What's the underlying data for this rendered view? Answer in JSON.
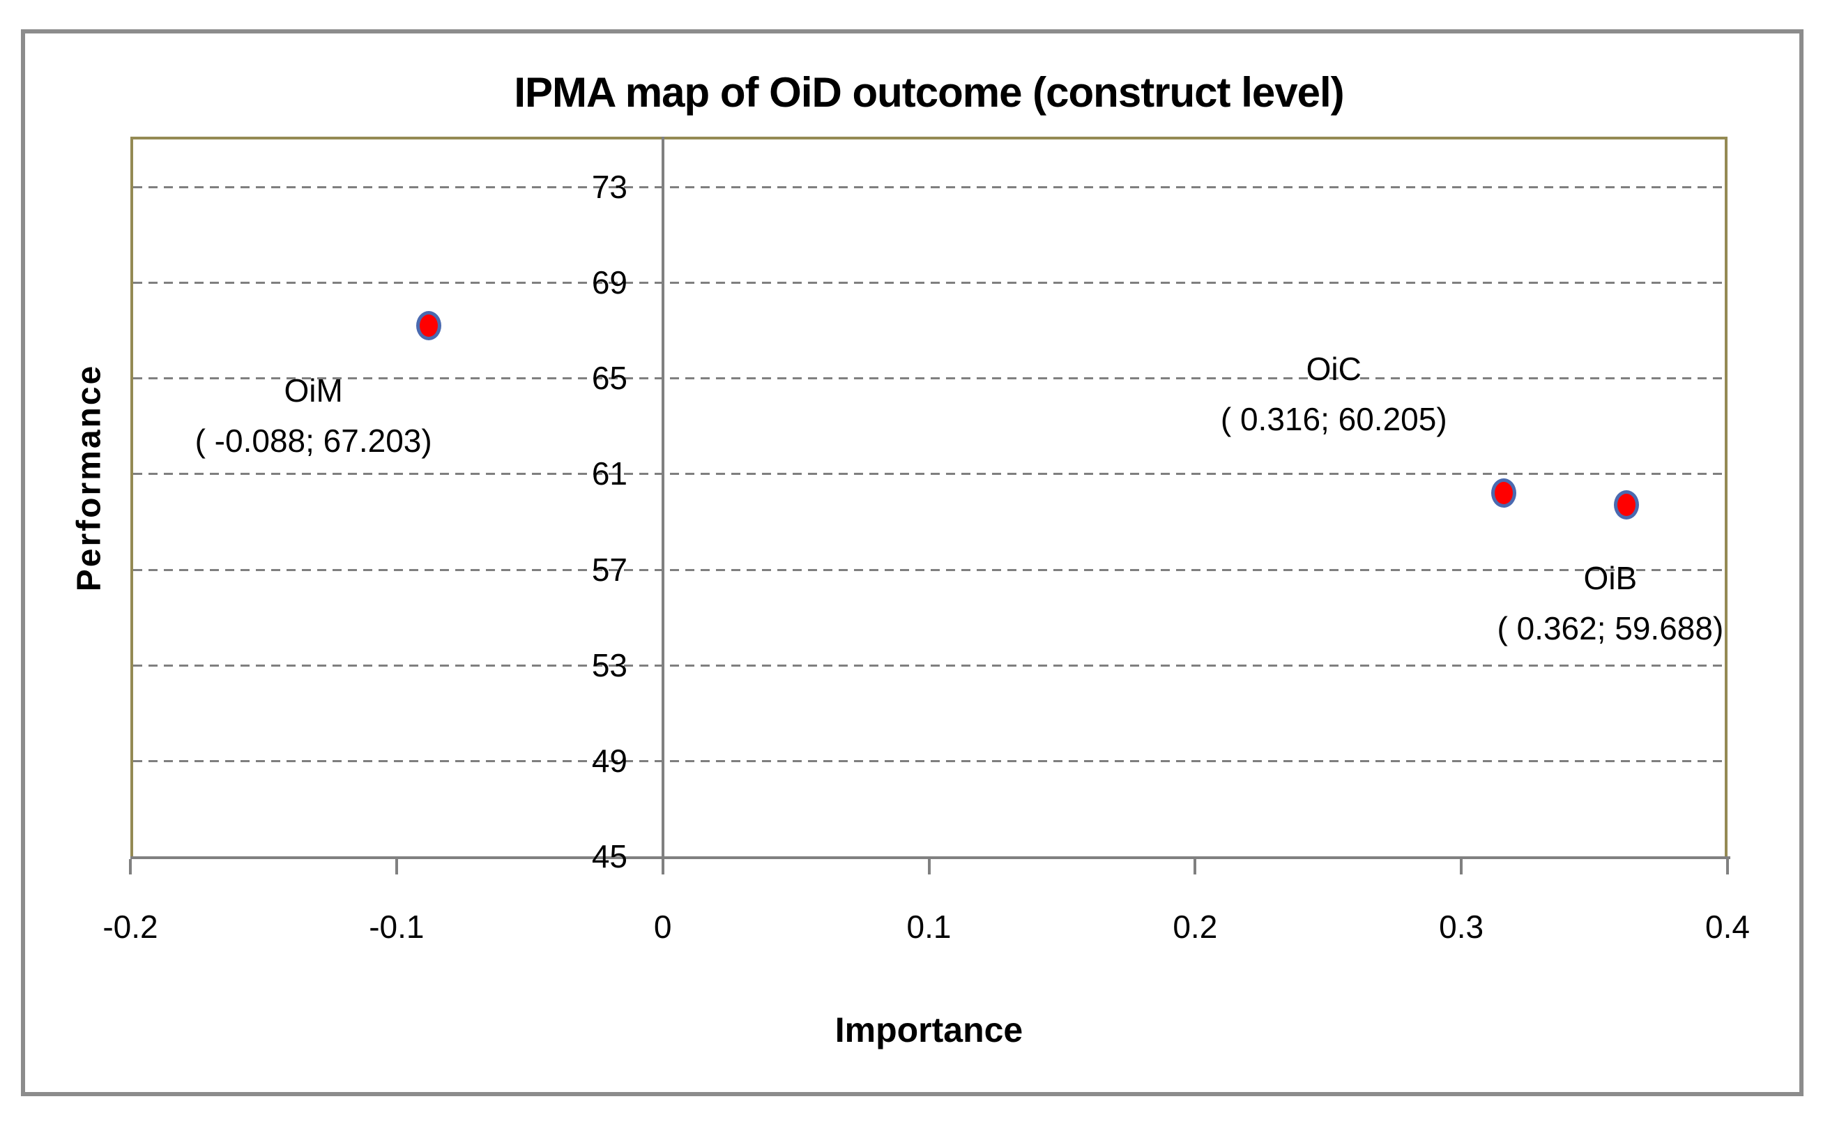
{
  "title": "IPMA map of OiD outcome (construct level)",
  "colors": {
    "outer_frame": "#8c8c8c",
    "plot_border": "#948a54",
    "gridline": "#7f7f7f",
    "axis_line": "#808080",
    "marker_fill": "#ff0000",
    "marker_border": "#4a6ab0",
    "text": "#000000"
  },
  "chart_data": {
    "type": "scatter",
    "title": "IPMA map of OiD outcome (construct level)",
    "xlabel": "Importance",
    "ylabel": "Performance",
    "xlim": [
      -0.2,
      0.4
    ],
    "ylim": [
      45,
      75.1
    ],
    "x_ticks": [
      -0.2,
      -0.1,
      0,
      0.1,
      0.2,
      0.3,
      0.4
    ],
    "x_tick_labels": [
      "-0.2",
      "-0.1",
      "0",
      "0.1",
      "0.2",
      "0.3",
      "0.4"
    ],
    "y_ticks": [
      73,
      69,
      65,
      61,
      57,
      53,
      49,
      45
    ],
    "y_tick_labels": [
      "73",
      "69",
      "65",
      "61",
      "57",
      "53",
      "49",
      "45"
    ],
    "grid": "horizontal-dashed-gray",
    "legend": "none",
    "axis_cross_x": 0,
    "points": [
      {
        "name": "OiM",
        "x": -0.088,
        "y": 67.203,
        "label_line1": "OiM",
        "label_line2": "( -0.088; 67.203)",
        "label_offset": [
          -165,
          129
        ]
      },
      {
        "name": "OiC",
        "x": 0.316,
        "y": 60.205,
        "label_line1": "OiC",
        "label_line2": "( 0.316; 60.205)",
        "label_offset": [
          -244,
          -142
        ]
      },
      {
        "name": "OiB",
        "x": 0.362,
        "y": 59.688,
        "label_line1": "OiB",
        "label_line2": "( 0.362; 59.688)",
        "label_offset": [
          -23,
          141
        ]
      }
    ]
  }
}
